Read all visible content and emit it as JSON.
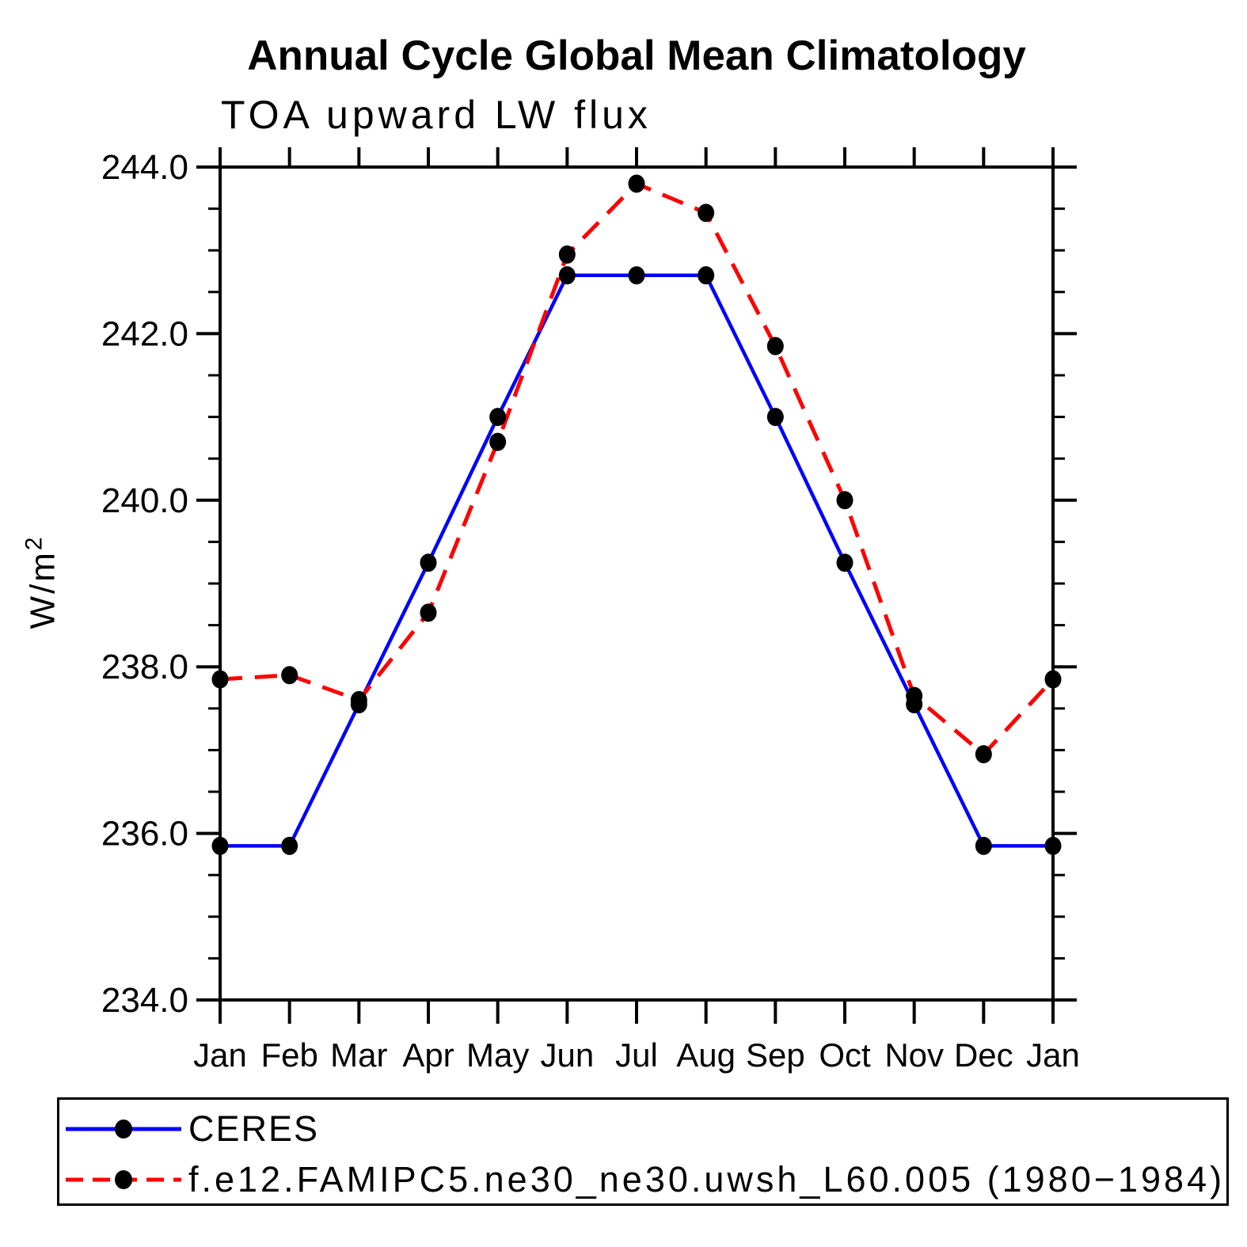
{
  "title": "Annual Cycle Global Mean Climatology",
  "subtitle": "TOA upward LW flux",
  "y_axis_title": {
    "base": "W/m",
    "sup": "2",
    "full": "W/m²"
  },
  "colors": {
    "ceres_line": "#0000ff",
    "model_line": "#ff0000",
    "marker": "#000000",
    "axis": "#000000",
    "background": "#ffffff"
  },
  "legend": {
    "entries": [
      {
        "label": "CERES",
        "style": "solid",
        "color": "#0000ff"
      },
      {
        "label": "f.e12.FAMIPC5.ne30_ne30.uwsh_L60.005 (1980−1984)",
        "style": "dashed",
        "color": "#ff0000"
      }
    ]
  },
  "chart_data": {
    "type": "line",
    "title": "Annual Cycle Global Mean Climatology",
    "subtitle": "TOA upward LW flux",
    "xlabel": "",
    "ylabel": "W/m²",
    "categories": [
      "Jan",
      "Feb",
      "Mar",
      "Apr",
      "May",
      "Jun",
      "Jul",
      "Aug",
      "Sep",
      "Oct",
      "Nov",
      "Dec",
      "Jan"
    ],
    "series": [
      {
        "name": "CERES",
        "color": "#0000ff",
        "style": "solid",
        "values": [
          235.85,
          235.85,
          237.55,
          239.25,
          241.0,
          242.7,
          242.7,
          242.7,
          241.0,
          239.25,
          237.55,
          235.85,
          235.85
        ]
      },
      {
        "name": "f.e12.FAMIPC5.ne30_ne30.uwsh_L60.005 (1980−1984)",
        "color": "#ff0000",
        "style": "dashed",
        "values": [
          237.85,
          237.9,
          237.6,
          238.65,
          240.7,
          242.95,
          243.8,
          243.45,
          241.85,
          240.0,
          237.65,
          236.95,
          237.85
        ]
      }
    ],
    "ylim": [
      234.0,
      244.0
    ],
    "y_major_step": 2.0,
    "y_minor_step": 0.5,
    "y_tick_labels": [
      "244.0",
      "242.0",
      "240.0",
      "238.0",
      "236.0",
      "234.0"
    ],
    "grid": false,
    "legend_position": "bottom",
    "marker": "filled-circle"
  }
}
